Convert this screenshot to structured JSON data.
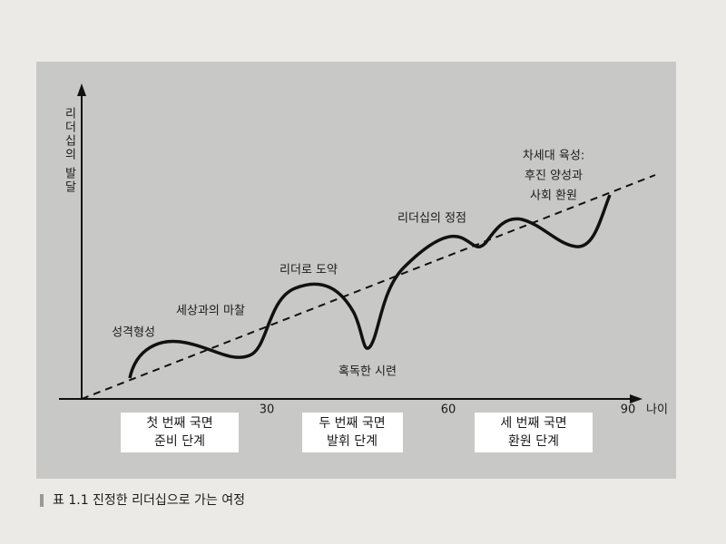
{
  "axes": {
    "y_label": "리더십의 발달",
    "x_label": "나이",
    "x_ticks": [
      "30",
      "60",
      "90"
    ]
  },
  "annotations": [
    "성격형성",
    "세상과의 마찰",
    "리더로 도약",
    "혹독한 시련",
    "리더십의 정점",
    "차세대 육성:",
    "후진 양성과",
    "사회 환원"
  ],
  "phases": [
    [
      "첫 번째 국면",
      "준비 단계"
    ],
    [
      "두 번째 국면",
      "발휘 단계"
    ],
    [
      "세 번째 국면",
      "환원 단계"
    ]
  ],
  "caption": "표 1.1 진정한 리더십으로 가는 여정"
}
